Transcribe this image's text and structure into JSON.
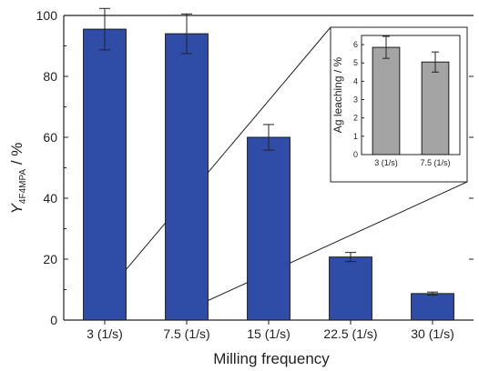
{
  "chart_data": [
    {
      "type": "bar",
      "categories": [
        "3 (1/s)",
        "7.5 (1/s)",
        "15 (1/s)",
        "22.5 (1/s)",
        "30 (1/s)"
      ],
      "values": [
        95.5,
        94.0,
        60.0,
        20.7,
        8.7
      ],
      "errors": [
        6.8,
        6.5,
        4.2,
        1.5,
        0.5
      ],
      "ylabel_main": "Y",
      "ylabel_sub": "4F4MPA",
      "ylabel_unit": " / %",
      "xlabel": "Milling frequency",
      "ylim": [
        0,
        100
      ],
      "yticks": [
        0,
        20,
        40,
        60,
        80,
        100
      ],
      "ytick_labels": [
        "0",
        "20",
        "40",
        "60",
        "80",
        "100"
      ],
      "bar_color": "#2f4da6",
      "grid": false
    },
    {
      "type": "bar",
      "categories": [
        "3 (1/s)",
        "7.5 (1/s)"
      ],
      "values": [
        5.85,
        5.05
      ],
      "errors": [
        0.6,
        0.55
      ],
      "ylabel": "Ag leaching / %",
      "xlabel": "",
      "ylim": [
        0,
        6.5
      ],
      "yticks": [
        0,
        1,
        2,
        3,
        4,
        5,
        6
      ],
      "ytick_labels": [
        "0",
        "1",
        "2",
        "3",
        "4",
        "5",
        "6"
      ],
      "bar_color": "#a4a4a4",
      "grid": false
    }
  ]
}
